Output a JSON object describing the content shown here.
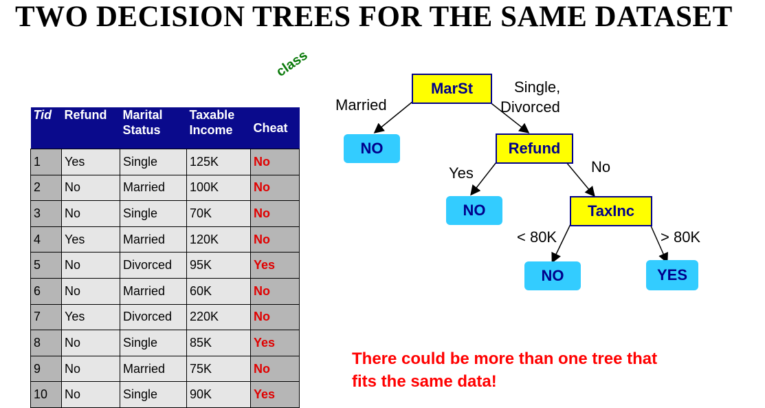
{
  "title": "TWO DECISION TREES FOR THE SAME DATASET",
  "class_label": "class",
  "table": {
    "headers": {
      "tid": "Tid",
      "refund": "Refund",
      "marital": [
        "Marital",
        "Status"
      ],
      "income": [
        "Taxable",
        "Income"
      ],
      "cheat": "Cheat"
    },
    "rows": [
      {
        "tid": "1",
        "refund": "Yes",
        "marital": "Single",
        "income": "125K",
        "cheat": "No"
      },
      {
        "tid": "2",
        "refund": "No",
        "marital": "Married",
        "income": "100K",
        "cheat": "No"
      },
      {
        "tid": "3",
        "refund": "No",
        "marital": "Single",
        "income": "70K",
        "cheat": "No"
      },
      {
        "tid": "4",
        "refund": "Yes",
        "marital": "Married",
        "income": "120K",
        "cheat": "No"
      },
      {
        "tid": "5",
        "refund": "No",
        "marital": "Divorced",
        "income": "95K",
        "cheat": "Yes"
      },
      {
        "tid": "6",
        "refund": "No",
        "marital": "Married",
        "income": "60K",
        "cheat": "No"
      },
      {
        "tid": "7",
        "refund": "Yes",
        "marital": "Divorced",
        "income": "220K",
        "cheat": "No"
      },
      {
        "tid": "8",
        "refund": "No",
        "marital": "Single",
        "income": "85K",
        "cheat": "Yes"
      },
      {
        "tid": "9",
        "refund": "No",
        "marital": "Married",
        "income": "75K",
        "cheat": "No"
      },
      {
        "tid": "10",
        "refund": "No",
        "marital": "Single",
        "income": "90K",
        "cheat": "Yes"
      }
    ]
  },
  "tree": {
    "root": "MarSt",
    "married_label": "Married",
    "single_divorced_label": [
      "Single,",
      "Divorced"
    ],
    "leaf_married": "NO",
    "refund": "Refund",
    "refund_yes_label": "Yes",
    "refund_no_label": "No",
    "leaf_refund_yes": "NO",
    "taxinc": "TaxInc",
    "lt_label": "< 80K",
    "gt_label": "> 80K",
    "leaf_lt": "NO",
    "leaf_gt": "YES"
  },
  "note": [
    "There could be more than one tree that",
    "fits the same data!"
  ],
  "colors": {
    "header_bg": "#0a0a8c",
    "attr_node": "#ffff00",
    "leaf_node": "#33ccff",
    "note": "#ff0000",
    "class_label": "#0a7a0a"
  }
}
